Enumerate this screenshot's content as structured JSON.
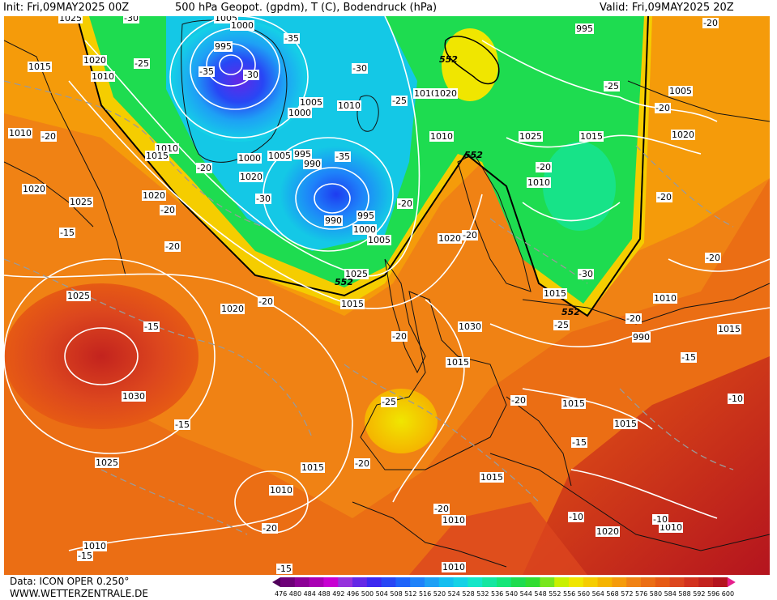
{
  "header": {
    "init": "Init: Fri,09MAY2025 00Z",
    "title": "500 hPa Geopot. (gpdm), T (C), Bodendruck (hPa)",
    "valid": "Valid: Fri,09MAY2025 20Z"
  },
  "footer": {
    "data_source": "Data: ICON OPER 0.250°",
    "site": "WWW.WETTERZENTRALE.DE"
  },
  "colors": {
    "background_warm": "#e8780a",
    "ocean_orange": "#f0961e",
    "yellow": "#f0d200",
    "green": "#1edc3c",
    "cyan": "#14c8e6",
    "blue": "#1e5aff",
    "purple": "#7828dc",
    "deep_red": "#b4141e"
  },
  "scale": {
    "labels": [
      "476",
      "480",
      "484",
      "488",
      "492",
      "496",
      "500",
      "504",
      "508",
      "512",
      "516",
      "520",
      "524",
      "528",
      "532",
      "536",
      "540",
      "544",
      "548",
      "552",
      "556",
      "560",
      "564",
      "568",
      "572",
      "576",
      "580",
      "584",
      "588",
      "592",
      "596",
      "600"
    ],
    "colors": [
      "#50005a",
      "#6e0078",
      "#8c0096",
      "#aa00b4",
      "#c800d2",
      "#9632dc",
      "#6428e6",
      "#3c28f0",
      "#2846f5",
      "#1e64fa",
      "#1e82fa",
      "#1ea0f5",
      "#14bef0",
      "#14d2e6",
      "#14e6c8",
      "#14e6a0",
      "#14e678",
      "#1edc50",
      "#32dc32",
      "#78e61e",
      "#c8f000",
      "#f0e600",
      "#f5cd00",
      "#f5b400",
      "#f59b0a",
      "#f08214",
      "#eb6e14",
      "#e65a14",
      "#dc461e",
      "#d2321e",
      "#c3231e",
      "#b4141e",
      "#e61e8c"
    ]
  },
  "map_labels": {
    "isobars": [
      "1025",
      "1005",
      "1000",
      "995",
      "1015",
      "1020",
      "1010",
      "1010",
      "1020",
      "1005",
      "1000",
      "1010",
      "1010",
      "1015",
      "995",
      "990",
      "1005",
      "1000",
      "1020",
      "1025",
      "1020",
      "1005",
      "1000",
      "995",
      "990",
      "1005",
      "1010",
      "1025",
      "1015",
      "1020",
      "1010",
      "1010",
      "1020",
      "1025",
      "1020",
      "1015",
      "1020",
      "1030",
      "1015",
      "1015",
      "1025",
      "1010",
      "1015",
      "1010",
      "1010",
      "1020",
      "1010",
      "1010",
      "1010",
      "1015",
      "1010",
      "1010"
    ],
    "temperatures": [
      "-30",
      "-25",
      "-35",
      "-35",
      "-30",
      "-30",
      "-25",
      "-20",
      "-20",
      "-20",
      "-20",
      "-25",
      "-30",
      "-20",
      "-20",
      "-30",
      "-20",
      "-35",
      "-20",
      "-15",
      "-20",
      "-20",
      "-20",
      "-20",
      "-15",
      "-20",
      "-25",
      "-15",
      "-20",
      "-20",
      "-25",
      "-15",
      "-20",
      "-20",
      "-15",
      "-15",
      "-20",
      "-15",
      "-20",
      "-15",
      "-10",
      "-15",
      "-10",
      "-10",
      "-15",
      "-10",
      "-15",
      "-15",
      "-20",
      "-15"
    ],
    "geopotential": [
      "552",
      "552",
      "552",
      "552"
    ]
  }
}
